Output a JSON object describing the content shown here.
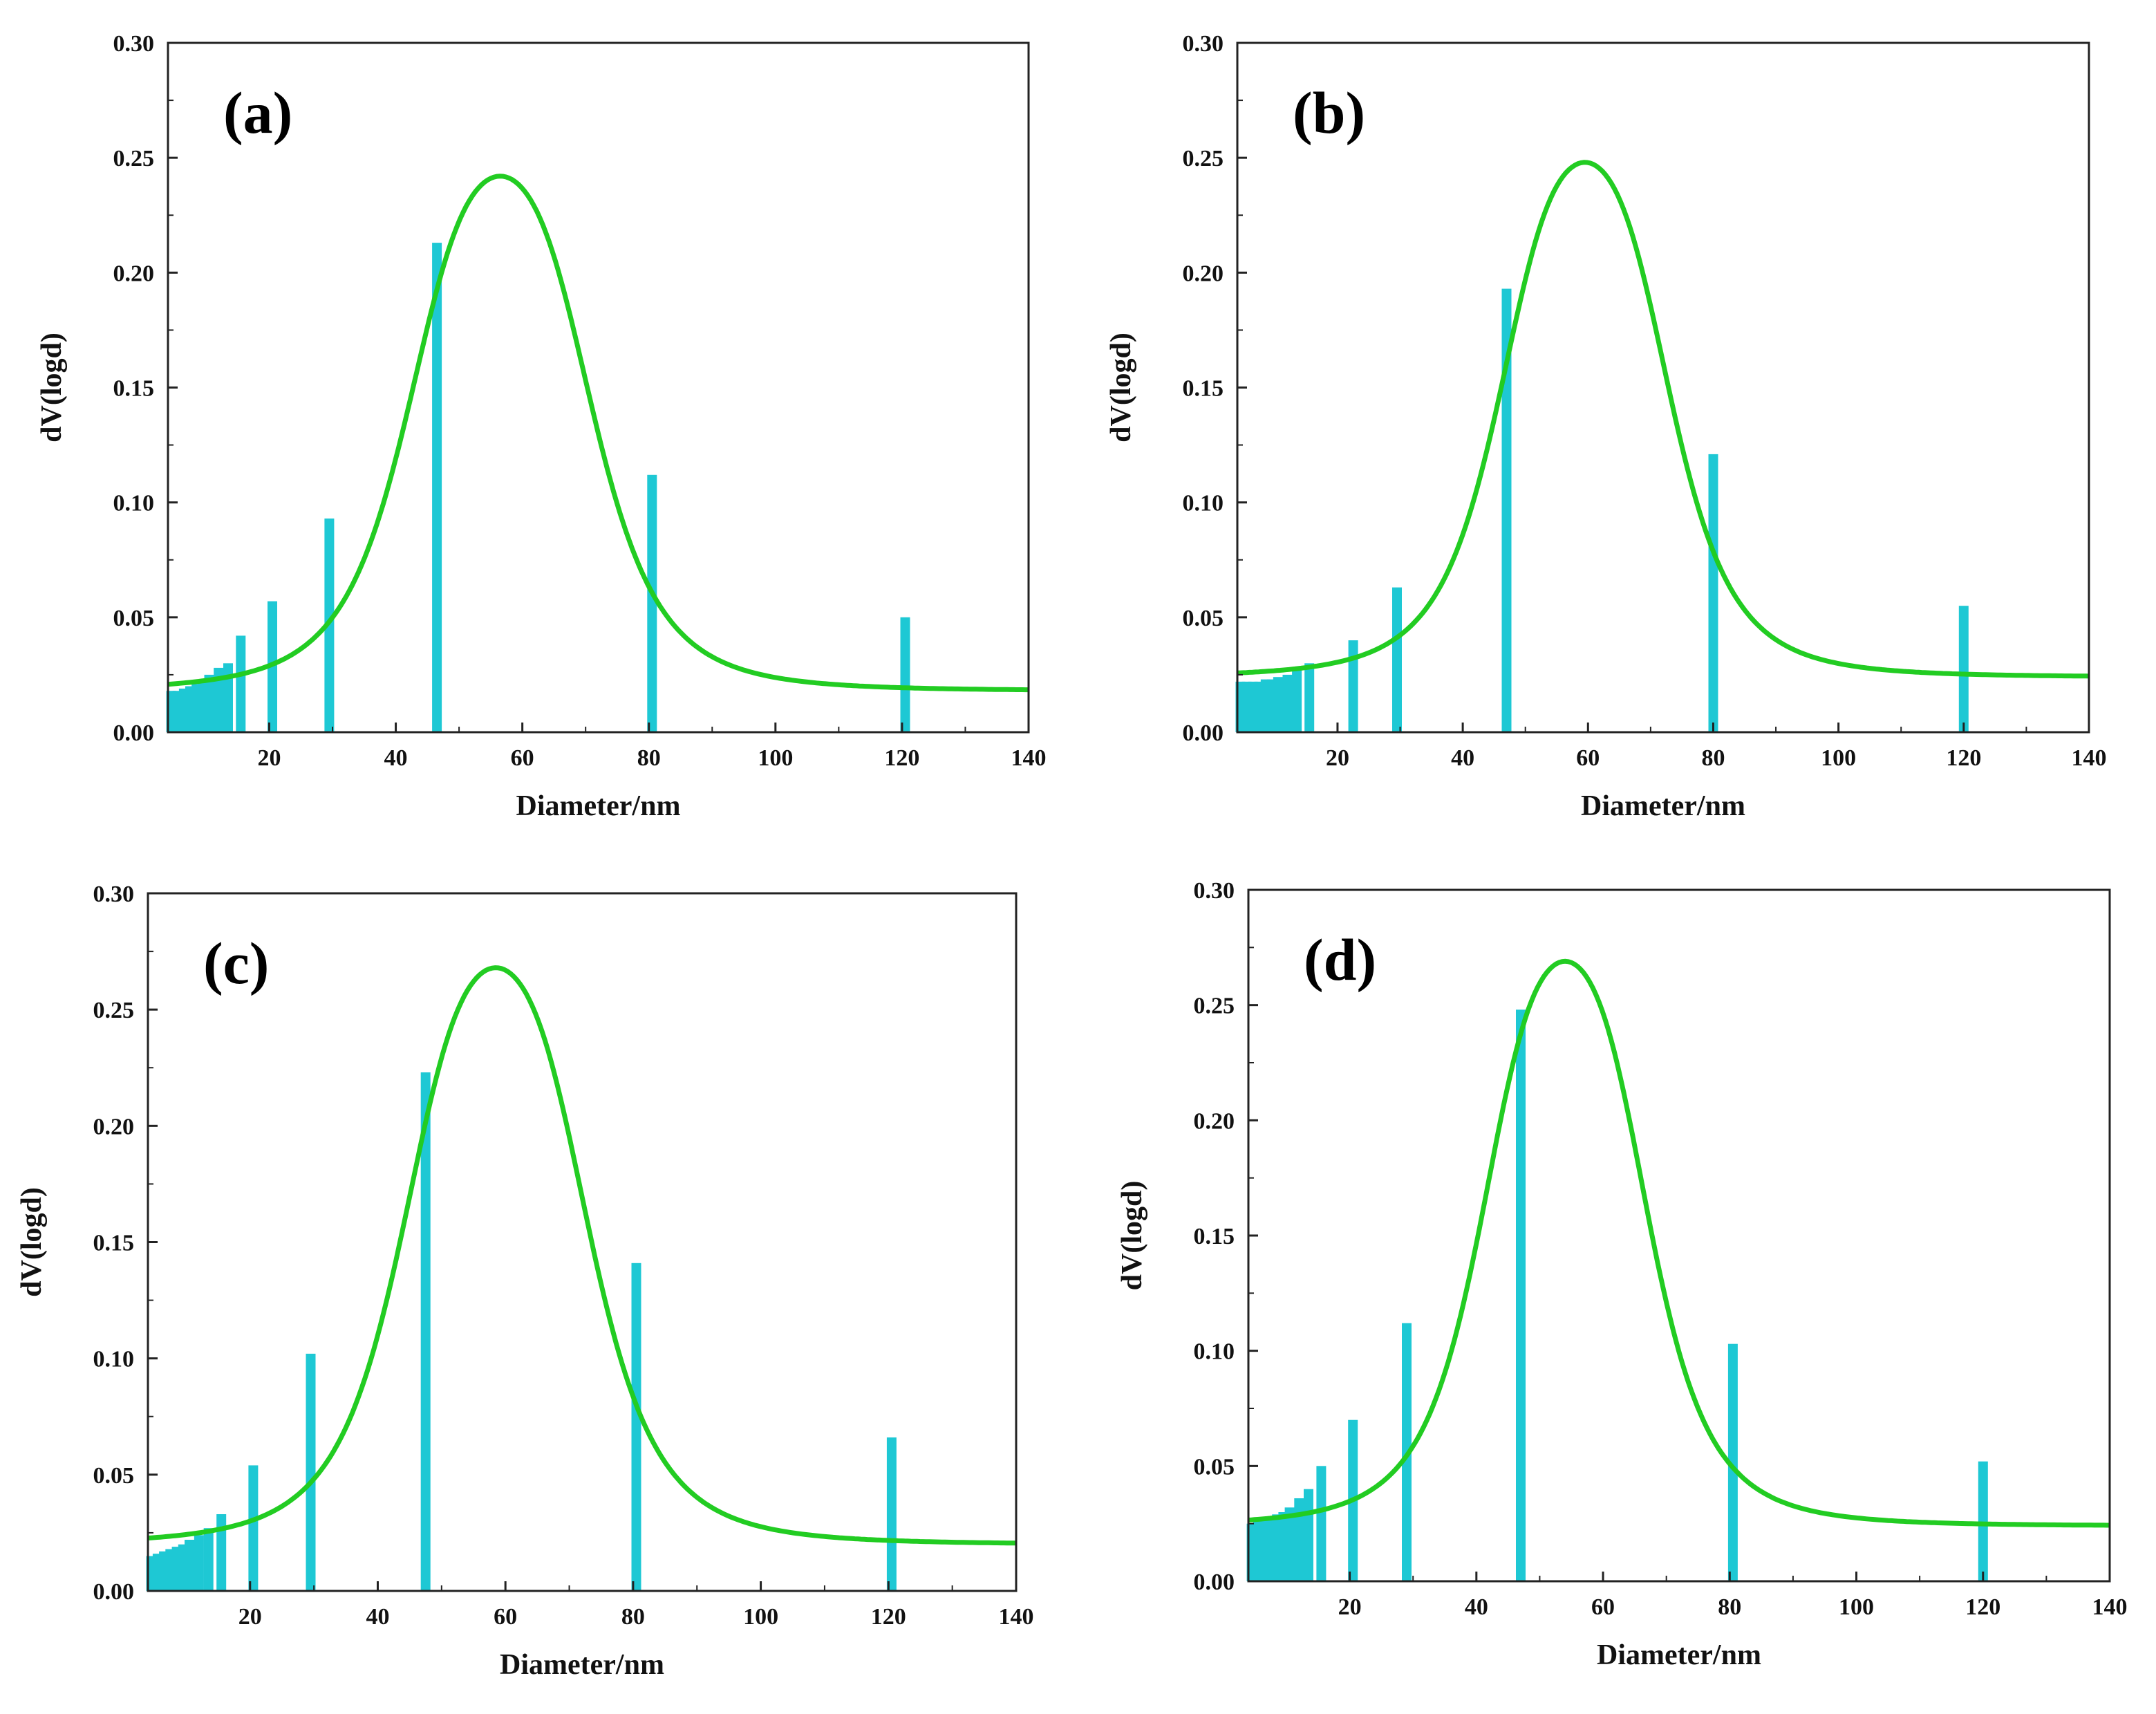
{
  "figure": {
    "x_title": "Diameter/nm",
    "y_title": "dV(logd)",
    "colors": {
      "bar": "#1ec8d4",
      "curve": "#22cc22",
      "axis": "#222222"
    }
  },
  "chart_data": [
    {
      "type": "bar",
      "panel_label": "(a)",
      "xlabel": "Diameter/nm",
      "ylabel": "dV(logd)",
      "xlim": [
        4,
        140
      ],
      "ylim": [
        0,
        0.3
      ],
      "xticks": [
        20,
        40,
        60,
        80,
        100,
        120,
        140
      ],
      "yticks": [
        0.0,
        0.05,
        0.1,
        0.15,
        0.2,
        0.25,
        0.3
      ],
      "bars": {
        "x": [
          4.5,
          5.5,
          6.5,
          7.5,
          8.5,
          9.5,
          10.5,
          12,
          13.5,
          15.5,
          20.5,
          29.5,
          46.5,
          80.5,
          120.5
        ],
        "values": [
          0.018,
          0.018,
          0.019,
          0.02,
          0.021,
          0.023,
          0.025,
          0.028,
          0.03,
          0.042,
          0.057,
          0.093,
          0.213,
          0.112,
          0.05
        ]
      },
      "fit_curve": {
        "baseline": 0.018,
        "peak_x": 56.5,
        "peak_y": 0.242,
        "width": 15.5
      }
    },
    {
      "type": "bar",
      "panel_label": "(b)",
      "xlabel": "Diameter/nm",
      "ylabel": "dV(logd)",
      "xlim": [
        4,
        140
      ],
      "ylim": [
        0,
        0.3
      ],
      "xticks": [
        20,
        40,
        60,
        80,
        100,
        120,
        140
      ],
      "yticks": [
        0.0,
        0.05,
        0.1,
        0.15,
        0.2,
        0.25,
        0.3
      ],
      "bars": {
        "x": [
          4.5,
          5.5,
          6.5,
          7.5,
          8.5,
          9.5,
          10.5,
          12,
          13.5,
          15.5,
          22.5,
          29.5,
          47,
          80,
          120
        ],
        "values": [
          0.022,
          0.022,
          0.022,
          0.022,
          0.023,
          0.023,
          0.024,
          0.025,
          0.027,
          0.03,
          0.04,
          0.063,
          0.193,
          0.121,
          0.055
        ]
      },
      "fit_curve": {
        "baseline": 0.024,
        "peak_x": 59.5,
        "peak_y": 0.248,
        "width": 14.5
      }
    },
    {
      "type": "bar",
      "panel_label": "(c)",
      "xlabel": "Diameter/nm",
      "ylabel": "dV(logd)",
      "xlim": [
        4,
        140
      ],
      "ylim": [
        0,
        0.3
      ],
      "xticks": [
        20,
        40,
        60,
        80,
        100,
        120,
        140
      ],
      "yticks": [
        0.0,
        0.05,
        0.1,
        0.15,
        0.2,
        0.25,
        0.3
      ],
      "bars": {
        "x": [
          4.5,
          5.5,
          6.5,
          7.5,
          8.5,
          9.5,
          10.5,
          12,
          13.5,
          15.5,
          20.5,
          29.5,
          47.5,
          80.5,
          120.5
        ],
        "values": [
          0.015,
          0.016,
          0.017,
          0.018,
          0.019,
          0.02,
          0.022,
          0.024,
          0.027,
          0.033,
          0.054,
          0.102,
          0.223,
          0.141,
          0.066
        ]
      },
      "fit_curve": {
        "baseline": 0.02,
        "peak_x": 58.5,
        "peak_y": 0.268,
        "width": 15.5
      }
    },
    {
      "type": "bar",
      "panel_label": "(d)",
      "xlabel": "Diameter/nm",
      "ylabel": "dV(logd)",
      "xlim": [
        4,
        140
      ],
      "ylim": [
        0,
        0.3
      ],
      "xticks": [
        20,
        40,
        60,
        80,
        100,
        120,
        140
      ],
      "yticks": [
        0.0,
        0.05,
        0.1,
        0.15,
        0.2,
        0.25,
        0.3
      ],
      "bars": {
        "x": [
          4.5,
          5.5,
          6.5,
          7.5,
          8.5,
          9.5,
          10.5,
          12,
          13.5,
          15.5,
          20.5,
          29,
          47,
          80.5,
          120
        ],
        "values": [
          0.025,
          0.026,
          0.027,
          0.028,
          0.029,
          0.03,
          0.032,
          0.036,
          0.04,
          0.05,
          0.07,
          0.112,
          0.248,
          0.103,
          0.052
        ]
      },
      "fit_curve": {
        "baseline": 0.024,
        "peak_x": 54,
        "peak_y": 0.269,
        "width": 14
      }
    }
  ]
}
